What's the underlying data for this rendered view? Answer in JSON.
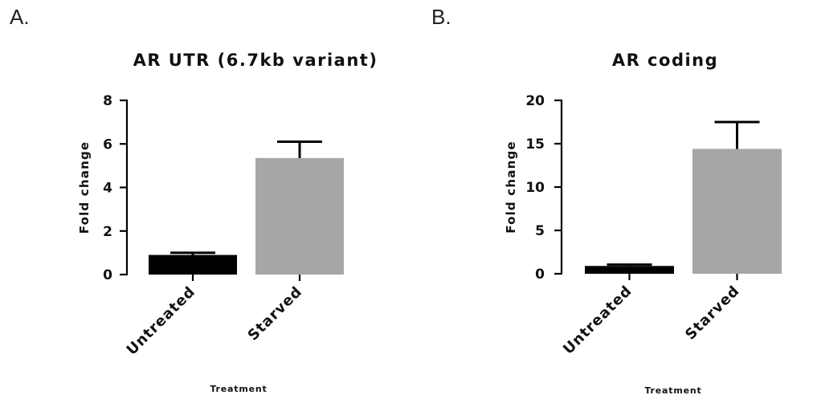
{
  "panels": [
    {
      "letter": "A."
    },
    {
      "letter": "B."
    }
  ],
  "chart_data": [
    {
      "type": "bar",
      "title": "AR UTR (6.7kb variant)",
      "xlabel": "Treatment",
      "ylabel": "Fold change",
      "categories": [
        "Untreated",
        "Starved"
      ],
      "values": [
        0.9,
        5.35
      ],
      "errors": [
        0.1,
        0.75
      ],
      "colors": [
        "#000000",
        "#a6a6a6"
      ],
      "ylim": [
        0,
        8
      ],
      "yticks": [
        0,
        2,
        4,
        6,
        8
      ],
      "grid": false,
      "legend": "none"
    },
    {
      "type": "bar",
      "title": "AR coding",
      "xlabel": "Treatment",
      "ylabel": "Fold change",
      "categories": [
        "Untreated",
        "Starved"
      ],
      "values": [
        0.9,
        14.4
      ],
      "errors": [
        0.15,
        3.1
      ],
      "colors": [
        "#000000",
        "#a6a6a6"
      ],
      "ylim": [
        0,
        20
      ],
      "yticks": [
        0,
        5,
        10,
        15,
        20
      ],
      "grid": false,
      "legend": "none"
    }
  ]
}
